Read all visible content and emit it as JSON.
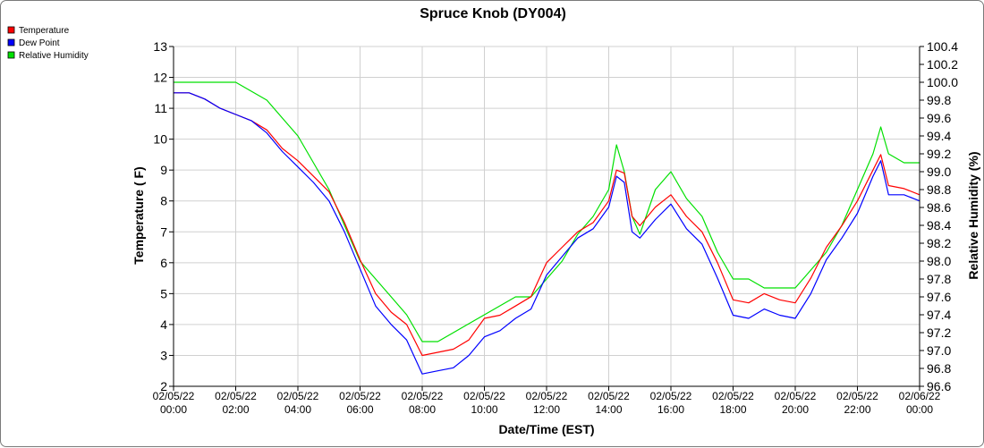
{
  "chart_data": {
    "type": "line",
    "title": "Spruce Knob (DY004)",
    "xlabel": "Date/Time (EST)",
    "ylabel": "Temperature ( F)",
    "y2label": "Relative Humidity (%)",
    "ylim": [
      2,
      13
    ],
    "y2lim": [
      96.6,
      100.4
    ],
    "xlim": [
      0,
      24
    ],
    "grid": true,
    "legend_position": "top-left",
    "x_ticks": [
      {
        "x": 0,
        "date": "02/05/22",
        "time": "00:00"
      },
      {
        "x": 2,
        "date": "02/05/22",
        "time": "02:00"
      },
      {
        "x": 4,
        "date": "02/05/22",
        "time": "04:00"
      },
      {
        "x": 6,
        "date": "02/05/22",
        "time": "06:00"
      },
      {
        "x": 8,
        "date": "02/05/22",
        "time": "08:00"
      },
      {
        "x": 10,
        "date": "02/05/22",
        "time": "10:00"
      },
      {
        "x": 12,
        "date": "02/05/22",
        "time": "12:00"
      },
      {
        "x": 14,
        "date": "02/05/22",
        "time": "14:00"
      },
      {
        "x": 16,
        "date": "02/05/22",
        "time": "16:00"
      },
      {
        "x": 18,
        "date": "02/05/22",
        "time": "18:00"
      },
      {
        "x": 20,
        "date": "02/05/22",
        "time": "20:00"
      },
      {
        "x": 22,
        "date": "02/05/22",
        "time": "22:00"
      },
      {
        "x": 24,
        "date": "02/06/22",
        "time": "00:00"
      }
    ],
    "y_ticks": [
      "2",
      "3",
      "4",
      "5",
      "6",
      "7",
      "8",
      "9",
      "10",
      "11",
      "12",
      "13"
    ],
    "y2_ticks": [
      "96.6",
      "96.8",
      "97.0",
      "97.2",
      "97.4",
      "97.6",
      "97.8",
      "98.0",
      "98.2",
      "98.4",
      "98.6",
      "98.8",
      "99.0",
      "99.2",
      "99.4",
      "99.6",
      "99.8",
      "100.0",
      "100.2",
      "100.4"
    ],
    "series": [
      {
        "name": "Temperature",
        "color": "#ff0000",
        "axis": "left",
        "points": [
          [
            0,
            11.5
          ],
          [
            0.5,
            11.5
          ],
          [
            1,
            11.3
          ],
          [
            1.5,
            11.0
          ],
          [
            2,
            10.8
          ],
          [
            2.5,
            10.6
          ],
          [
            3,
            10.3
          ],
          [
            3.5,
            9.7
          ],
          [
            4,
            9.3
          ],
          [
            4.5,
            8.8
          ],
          [
            5,
            8.3
          ],
          [
            5.5,
            7.3
          ],
          [
            6,
            6.1
          ],
          [
            6.5,
            5.0
          ],
          [
            7,
            4.4
          ],
          [
            7.5,
            4.0
          ],
          [
            8,
            3.0
          ],
          [
            8.5,
            3.1
          ],
          [
            9,
            3.2
          ],
          [
            9.5,
            3.5
          ],
          [
            10,
            4.2
          ],
          [
            10.5,
            4.3
          ],
          [
            11,
            4.6
          ],
          [
            11.5,
            4.9
          ],
          [
            12,
            6.0
          ],
          [
            12.5,
            6.5
          ],
          [
            13,
            7.0
          ],
          [
            13.5,
            7.3
          ],
          [
            14,
            8.0
          ],
          [
            14.25,
            9.0
          ],
          [
            14.5,
            8.9
          ],
          [
            14.75,
            7.5
          ],
          [
            15,
            7.2
          ],
          [
            15.5,
            7.8
          ],
          [
            16,
            8.2
          ],
          [
            16.5,
            7.5
          ],
          [
            17,
            7.0
          ],
          [
            17.5,
            6.0
          ],
          [
            18,
            4.8
          ],
          [
            18.5,
            4.7
          ],
          [
            19,
            5.0
          ],
          [
            19.5,
            4.8
          ],
          [
            20,
            4.7
          ],
          [
            20.5,
            5.5
          ],
          [
            21,
            6.5
          ],
          [
            21.5,
            7.2
          ],
          [
            22,
            8.0
          ],
          [
            22.5,
            9.0
          ],
          [
            22.75,
            9.5
          ],
          [
            23,
            8.5
          ],
          [
            23.5,
            8.4
          ],
          [
            24,
            8.2
          ]
        ]
      },
      {
        "name": "Dew Point",
        "color": "#0000ff",
        "axis": "left",
        "points": [
          [
            0,
            11.5
          ],
          [
            0.5,
            11.5
          ],
          [
            1,
            11.3
          ],
          [
            1.5,
            11.0
          ],
          [
            2,
            10.8
          ],
          [
            2.5,
            10.6
          ],
          [
            3,
            10.2
          ],
          [
            3.5,
            9.6
          ],
          [
            4,
            9.1
          ],
          [
            4.5,
            8.6
          ],
          [
            5,
            8.0
          ],
          [
            5.5,
            7.0
          ],
          [
            6,
            5.8
          ],
          [
            6.5,
            4.6
          ],
          [
            7,
            4.0
          ],
          [
            7.5,
            3.5
          ],
          [
            8,
            2.4
          ],
          [
            8.5,
            2.5
          ],
          [
            9,
            2.6
          ],
          [
            9.5,
            3.0
          ],
          [
            10,
            3.6
          ],
          [
            10.5,
            3.8
          ],
          [
            11,
            4.2
          ],
          [
            11.5,
            4.5
          ],
          [
            12,
            5.6
          ],
          [
            12.5,
            6.2
          ],
          [
            13,
            6.8
          ],
          [
            13.5,
            7.1
          ],
          [
            14,
            7.8
          ],
          [
            14.25,
            8.8
          ],
          [
            14.5,
            8.6
          ],
          [
            14.75,
            7.0
          ],
          [
            15,
            6.8
          ],
          [
            15.5,
            7.4
          ],
          [
            16,
            7.9
          ],
          [
            16.5,
            7.1
          ],
          [
            17,
            6.6
          ],
          [
            17.5,
            5.5
          ],
          [
            18,
            4.3
          ],
          [
            18.5,
            4.2
          ],
          [
            19,
            4.5
          ],
          [
            19.5,
            4.3
          ],
          [
            20,
            4.2
          ],
          [
            20.5,
            5.0
          ],
          [
            21,
            6.1
          ],
          [
            21.5,
            6.8
          ],
          [
            22,
            7.6
          ],
          [
            22.5,
            8.8
          ],
          [
            22.75,
            9.3
          ],
          [
            23,
            8.2
          ],
          [
            23.5,
            8.2
          ],
          [
            24,
            8.0
          ]
        ]
      },
      {
        "name": "Relative Humidity",
        "color": "#00e000",
        "axis": "right",
        "points": [
          [
            0,
            100.0
          ],
          [
            1,
            100.0
          ],
          [
            2,
            100.0
          ],
          [
            2.5,
            99.9
          ],
          [
            3,
            99.8
          ],
          [
            3.5,
            99.6
          ],
          [
            4,
            99.4
          ],
          [
            4.5,
            99.1
          ],
          [
            5,
            98.8
          ],
          [
            5.5,
            98.4
          ],
          [
            6,
            98.0
          ],
          [
            6.5,
            97.8
          ],
          [
            7,
            97.6
          ],
          [
            7.5,
            97.4
          ],
          [
            8,
            97.1
          ],
          [
            8.5,
            97.1
          ],
          [
            9,
            97.2
          ],
          [
            9.5,
            97.3
          ],
          [
            10,
            97.4
          ],
          [
            10.5,
            97.5
          ],
          [
            11,
            97.6
          ],
          [
            11.5,
            97.6
          ],
          [
            12,
            97.8
          ],
          [
            12.5,
            98.0
          ],
          [
            13,
            98.3
          ],
          [
            13.5,
            98.5
          ],
          [
            14,
            98.8
          ],
          [
            14.25,
            99.3
          ],
          [
            14.5,
            99.0
          ],
          [
            14.75,
            98.5
          ],
          [
            15,
            98.3
          ],
          [
            15.5,
            98.8
          ],
          [
            16,
            99.0
          ],
          [
            16.5,
            98.7
          ],
          [
            17,
            98.5
          ],
          [
            17.5,
            98.1
          ],
          [
            18,
            97.8
          ],
          [
            18.5,
            97.8
          ],
          [
            19,
            97.7
          ],
          [
            19.5,
            97.7
          ],
          [
            20,
            97.7
          ],
          [
            20.5,
            97.9
          ],
          [
            21,
            98.1
          ],
          [
            21.5,
            98.4
          ],
          [
            22,
            98.8
          ],
          [
            22.5,
            99.2
          ],
          [
            22.75,
            99.5
          ],
          [
            23,
            99.2
          ],
          [
            23.5,
            99.1
          ],
          [
            24,
            99.1
          ]
        ]
      }
    ]
  }
}
